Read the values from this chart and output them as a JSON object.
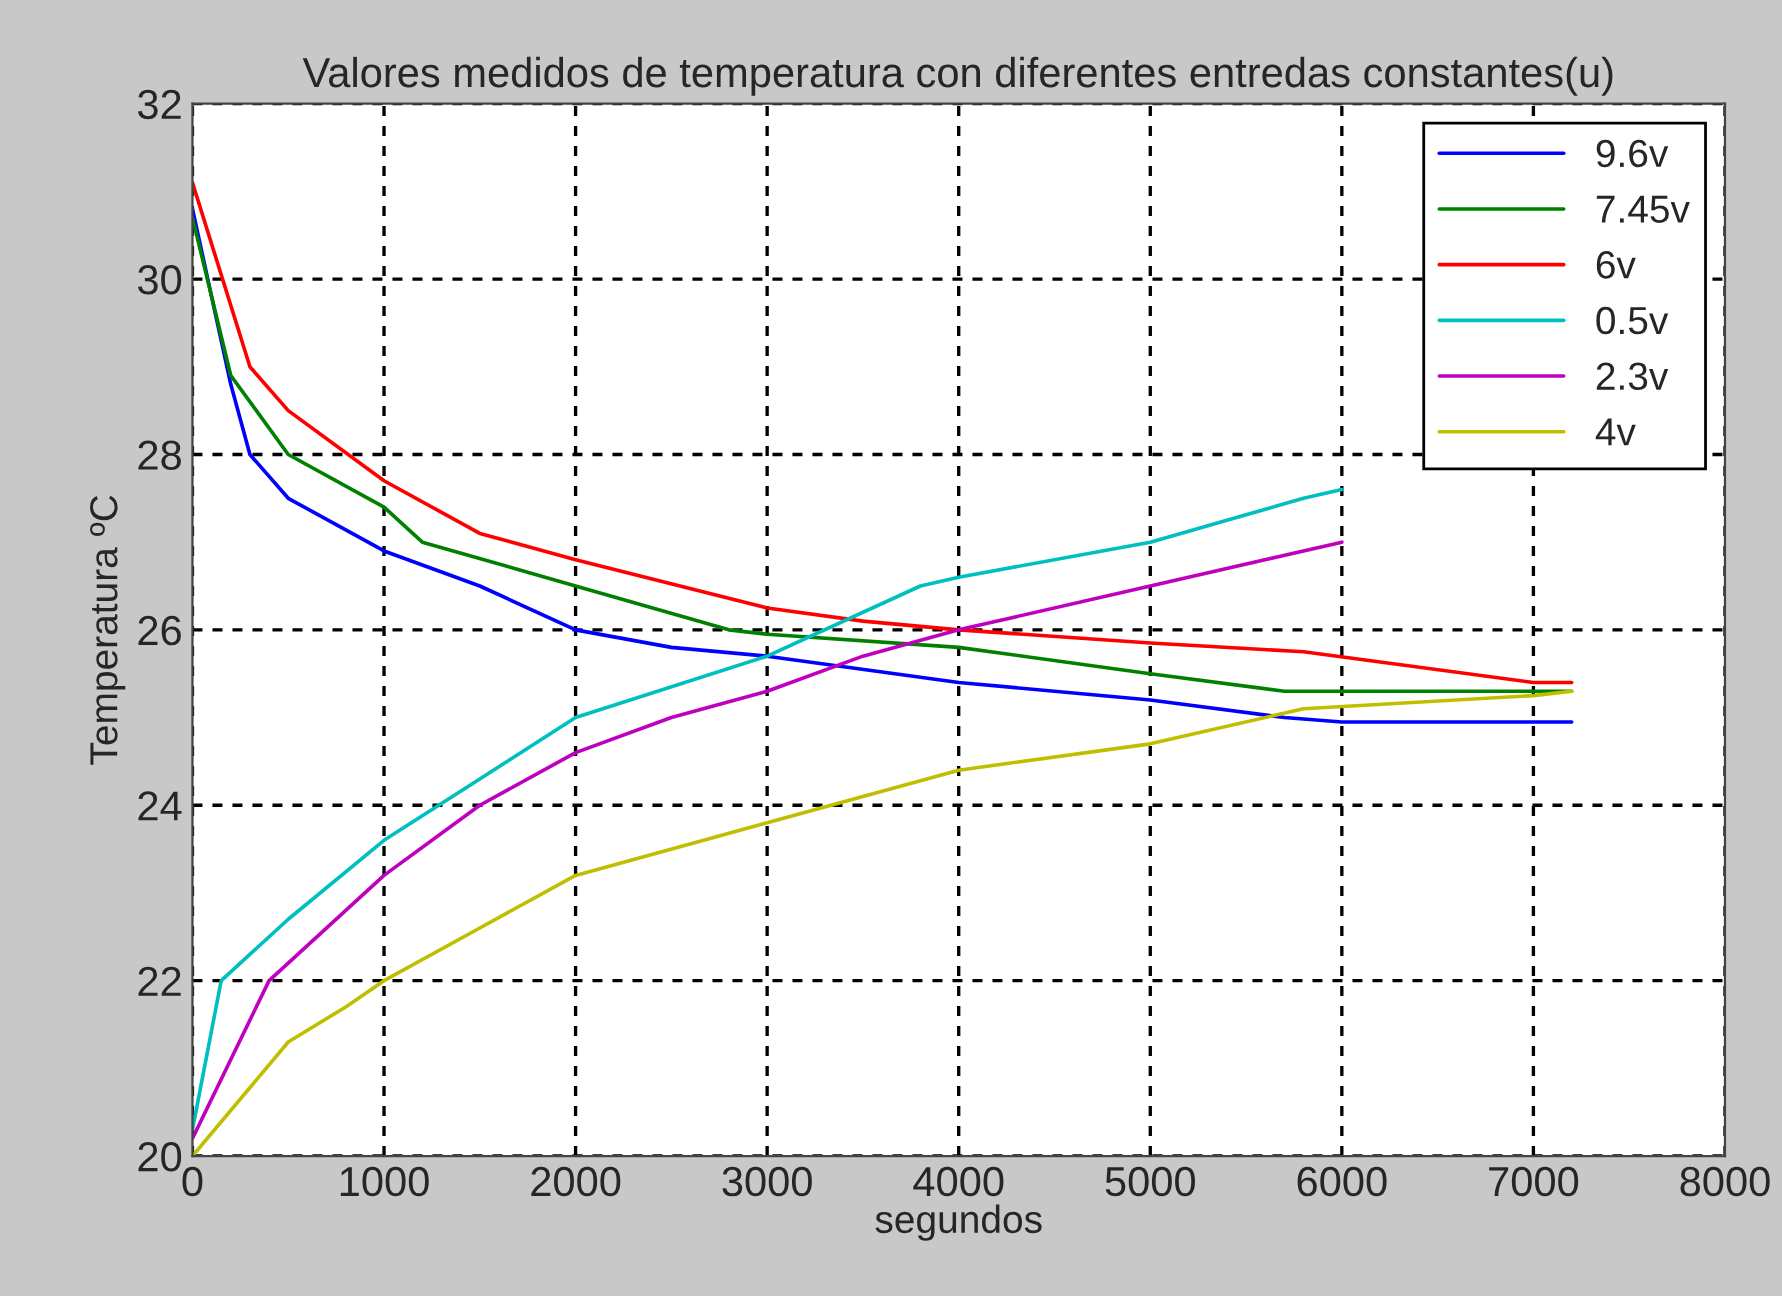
{
  "chart_data": {
    "type": "line",
    "title": "Valores medidos de temperatura con diferentes entredas constantes(u)",
    "xlabel": "segundos",
    "ylabel": "Temperatura ºC",
    "xlim": [
      0,
      8000
    ],
    "xticks": [
      0,
      1000,
      2000,
      3000,
      4000,
      5000,
      6000,
      7000,
      8000
    ],
    "ylim": [
      20,
      32
    ],
    "yticks": [
      20,
      22,
      24,
      26,
      28,
      30,
      32
    ],
    "grid": true,
    "legend": "top right",
    "marker": "none",
    "line_style": "solid",
    "series": [
      {
        "name": "9.6v",
        "color": "#0000ff",
        "x": [
          0,
          200,
          300,
          500,
          1000,
          1500,
          2000,
          2500,
          3000,
          4000,
          5000,
          5700,
          6000,
          7200
        ],
        "values": [
          30.8,
          28.8,
          28.0,
          27.5,
          26.9,
          26.5,
          26.0,
          25.8,
          25.7,
          25.4,
          25.2,
          25.0,
          24.95,
          24.95
        ]
      },
      {
        "name": "7.45v",
        "color": "#008000",
        "x": [
          0,
          200,
          500,
          1000,
          1200,
          2000,
          2800,
          3000,
          4000,
          5000,
          5700,
          6000,
          7200
        ],
        "values": [
          30.7,
          28.9,
          28.0,
          27.4,
          27.0,
          26.5,
          26.0,
          25.95,
          25.8,
          25.5,
          25.3,
          25.3,
          25.3
        ]
      },
      {
        "name": "6v",
        "color": "#ff0000",
        "x": [
          0,
          300,
          500,
          1000,
          1500,
          2000,
          3000,
          3500,
          4000,
          5000,
          5800,
          7000,
          7200
        ],
        "values": [
          31.1,
          29.0,
          28.5,
          27.7,
          27.1,
          26.8,
          26.25,
          26.1,
          26.0,
          25.85,
          25.75,
          25.4,
          25.4
        ]
      },
      {
        "name": "0.5v",
        "color": "#00bfbf",
        "x": [
          0,
          150,
          500,
          1000,
          1500,
          2000,
          3000,
          3800,
          4000,
          5000,
          5800,
          6000
        ],
        "values": [
          20.3,
          22.0,
          22.7,
          23.6,
          24.3,
          25.0,
          25.7,
          26.5,
          26.6,
          27.0,
          27.5,
          27.6
        ]
      },
      {
        "name": "2.3v",
        "color": "#bf00bf",
        "x": [
          0,
          400,
          1000,
          1500,
          2000,
          2500,
          3000,
          3500,
          4000,
          5000,
          6000
        ],
        "values": [
          20.2,
          22.0,
          23.2,
          24.0,
          24.6,
          25.0,
          25.3,
          25.7,
          26.0,
          26.5,
          27.0
        ]
      },
      {
        "name": "4v",
        "color": "#bfbf00",
        "x": [
          0,
          500,
          800,
          1000,
          1500,
          2000,
          3000,
          4000,
          5000,
          5800,
          7000,
          7200
        ],
        "values": [
          20.0,
          21.3,
          21.7,
          22.0,
          22.6,
          23.2,
          23.8,
          24.4,
          24.7,
          25.1,
          25.25,
          25.3
        ]
      }
    ]
  }
}
